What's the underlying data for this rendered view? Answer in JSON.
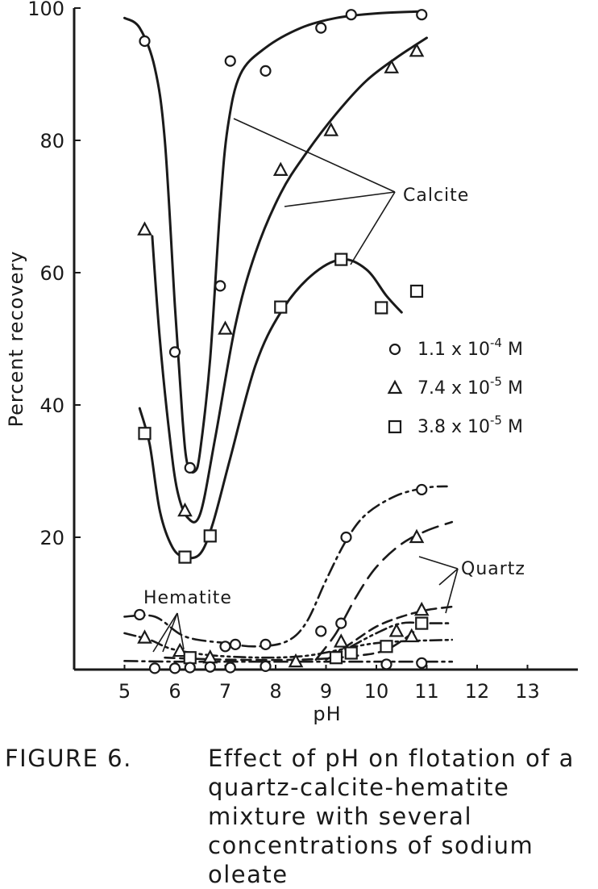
{
  "chart_data": {
    "type": "scatter",
    "xlabel": "pH",
    "ylabel": "Percent recovery",
    "xlim": [
      4,
      14
    ],
    "ylim": [
      0,
      100
    ],
    "xticks": [
      "5",
      "6",
      "7",
      "8",
      "9",
      "10",
      "11",
      "12",
      "13"
    ],
    "yticks": [
      "20",
      "40",
      "60",
      "80",
      "100"
    ],
    "grid": false,
    "legend_position": "right",
    "legend": [
      {
        "marker": "circle",
        "base": "1.1 x 10",
        "exp": "-4",
        "unit": " M"
      },
      {
        "marker": "triangle",
        "base": "7.4 x 10",
        "exp": "-5",
        "unit": " M"
      },
      {
        "marker": "square",
        "base": "3.8 x 10",
        "exp": "-5",
        "unit": " M"
      }
    ],
    "annotations": {
      "calcite": "Calcite",
      "quartz": "Quartz",
      "hematite": "Hematite"
    },
    "series": [
      {
        "mineral": "Calcite",
        "marker": "circle",
        "style": "solid",
        "points": [
          [
            5.4,
            95
          ],
          [
            6.0,
            48
          ],
          [
            6.3,
            30.5
          ],
          [
            6.9,
            58
          ],
          [
            7.1,
            92
          ],
          [
            7.8,
            90.5
          ],
          [
            8.9,
            97
          ],
          [
            9.5,
            99
          ],
          [
            10.9,
            99
          ]
        ],
        "curve": [
          [
            5.0,
            98.5
          ],
          [
            5.3,
            97
          ],
          [
            5.6,
            91
          ],
          [
            5.8,
            80
          ],
          [
            6.0,
            55
          ],
          [
            6.15,
            38
          ],
          [
            6.25,
            31
          ],
          [
            6.4,
            30
          ],
          [
            6.5,
            33
          ],
          [
            6.7,
            47
          ],
          [
            6.9,
            70
          ],
          [
            7.05,
            82
          ],
          [
            7.3,
            90
          ],
          [
            7.8,
            94
          ],
          [
            8.5,
            97
          ],
          [
            9.2,
            98.5
          ],
          [
            10,
            99.2
          ],
          [
            10.9,
            99.5
          ]
        ]
      },
      {
        "mineral": "Calcite",
        "marker": "triangle",
        "style": "solid",
        "points": [
          [
            5.4,
            66.5
          ],
          [
            6.2,
            24
          ],
          [
            7.0,
            51.5
          ],
          [
            8.1,
            75.5
          ],
          [
            9.1,
            81.5
          ],
          [
            10.3,
            91
          ],
          [
            10.8,
            93.5
          ]
        ],
        "curve": [
          [
            5.55,
            65.5
          ],
          [
            5.7,
            50
          ],
          [
            5.9,
            35
          ],
          [
            6.05,
            27
          ],
          [
            6.25,
            23
          ],
          [
            6.5,
            23.5
          ],
          [
            6.8,
            35
          ],
          [
            7.2,
            52
          ],
          [
            7.6,
            63
          ],
          [
            8.1,
            72
          ],
          [
            8.6,
            78
          ],
          [
            9.2,
            84
          ],
          [
            9.8,
            89
          ],
          [
            10.4,
            92.5
          ],
          [
            11.0,
            95.5
          ]
        ]
      },
      {
        "mineral": "Calcite",
        "marker": "square",
        "style": "solid",
        "points": [
          [
            5.4,
            35.7
          ],
          [
            6.2,
            17
          ],
          [
            6.7,
            20.2
          ],
          [
            8.1,
            54.8
          ],
          [
            9.3,
            62
          ],
          [
            10.1,
            54.7
          ],
          [
            10.8,
            57.2
          ]
        ],
        "curve": [
          [
            5.3,
            39.5
          ],
          [
            5.5,
            34
          ],
          [
            5.7,
            24
          ],
          [
            5.95,
            18.5
          ],
          [
            6.2,
            17
          ],
          [
            6.5,
            17.5
          ],
          [
            6.75,
            22
          ],
          [
            7.1,
            32
          ],
          [
            7.6,
            46
          ],
          [
            8.1,
            54
          ],
          [
            8.7,
            59.5
          ],
          [
            9.3,
            62
          ],
          [
            9.8,
            60.5
          ],
          [
            10.2,
            56.5
          ],
          [
            10.5,
            54
          ]
        ]
      },
      {
        "mineral": "Quartz",
        "marker": "circle",
        "style": "dash-dot",
        "points": [
          [
            5.3,
            8.3
          ],
          [
            7.0,
            3.5
          ],
          [
            7.2,
            3.8
          ],
          [
            7.8,
            3.8
          ],
          [
            8.9,
            5.8
          ],
          [
            9.3,
            7
          ],
          [
            9.4,
            20
          ],
          [
            10.9,
            27.2
          ]
        ],
        "curve": [
          [
            5.0,
            8
          ],
          [
            5.6,
            8
          ],
          [
            6.2,
            5
          ],
          [
            7.0,
            4
          ],
          [
            7.6,
            3.5
          ],
          [
            8.2,
            4.2
          ],
          [
            8.6,
            7
          ],
          [
            9.0,
            13.5
          ],
          [
            9.4,
            19.5
          ],
          [
            9.8,
            23.5
          ],
          [
            10.4,
            26.3
          ],
          [
            11.0,
            27.5
          ],
          [
            11.4,
            27.7
          ]
        ]
      },
      {
        "mineral": "Quartz",
        "marker": "triangle",
        "style": "long-dash",
        "points": [
          [
            10.8,
            20
          ]
        ],
        "curve": [
          [
            8.8,
            1.5
          ],
          [
            9.2,
            5.5
          ],
          [
            9.6,
            11
          ],
          [
            10.0,
            15.5
          ],
          [
            10.5,
            19
          ],
          [
            11.0,
            21
          ],
          [
            11.5,
            22.3
          ]
        ]
      },
      {
        "mineral": "Quartz",
        "marker": "square",
        "style": "dash",
        "points": [],
        "curve": [
          [
            9.1,
            2
          ],
          [
            9.5,
            4
          ],
          [
            10,
            6.5
          ],
          [
            10.5,
            8
          ],
          [
            11,
            9
          ],
          [
            11.5,
            9.5
          ]
        ]
      },
      {
        "mineral": "Quartz",
        "marker": "triangle",
        "style": "dash-dot-dot",
        "points": [
          [
            9.3,
            4.2
          ],
          [
            10.4,
            5.8
          ],
          [
            10.9,
            9
          ],
          [
            10.7,
            5
          ]
        ],
        "curve": [
          [
            9.0,
            1.5
          ],
          [
            9.5,
            3.5
          ],
          [
            10,
            5.5
          ],
          [
            10.5,
            7
          ],
          [
            11.0,
            7
          ],
          [
            11.5,
            7
          ]
        ]
      },
      {
        "mineral": "Hematite",
        "marker": "triangle",
        "style": "dash-dot-dot",
        "points": [
          [
            5.4,
            4.8
          ],
          [
            6.1,
            2.8
          ],
          [
            6.7,
            1.8
          ],
          [
            8.4,
            1.2
          ]
        ],
        "curve": [
          [
            5.0,
            5.5
          ],
          [
            5.5,
            4.5
          ],
          [
            6.0,
            3
          ],
          [
            7.0,
            2
          ],
          [
            8.5,
            2
          ],
          [
            10,
            4
          ],
          [
            11.5,
            4.5
          ]
        ]
      },
      {
        "mineral": "Hematite",
        "marker": "square",
        "style": "dash",
        "points": [
          [
            6.3,
            1.8
          ],
          [
            9.2,
            1.8
          ],
          [
            9.5,
            2.5
          ],
          [
            10.2,
            3.5
          ],
          [
            10.9,
            7
          ]
        ],
        "curve": [
          [
            5.8,
            1.8
          ],
          [
            7.0,
            1.5
          ],
          [
            8.5,
            1.5
          ],
          [
            9.5,
            2
          ],
          [
            10.2,
            3
          ],
          [
            10.8,
            6
          ]
        ]
      },
      {
        "mineral": "Hematite",
        "marker": "circle",
        "style": "dash-dot",
        "points": [
          [
            5.6,
            0.2
          ],
          [
            6.0,
            0.2
          ],
          [
            6.3,
            0.3
          ],
          [
            6.7,
            0.4
          ],
          [
            7.1,
            0.3
          ],
          [
            7.8,
            0.5
          ],
          [
            10.2,
            0.8
          ],
          [
            10.9,
            1
          ]
        ],
        "curve": [
          [
            5.0,
            1.3
          ],
          [
            6,
            1.2
          ],
          [
            7,
            1.2
          ],
          [
            8,
            1.2
          ],
          [
            9,
            1.2
          ],
          [
            10,
            1.2
          ],
          [
            11,
            1.2
          ],
          [
            11.5,
            1.2
          ]
        ]
      }
    ]
  },
  "caption": {
    "label": "FIGURE 6.",
    "text": "Effect of pH on flotation of a quartz-calcite-hematite mixture with several concentrations of sodium oleate"
  }
}
